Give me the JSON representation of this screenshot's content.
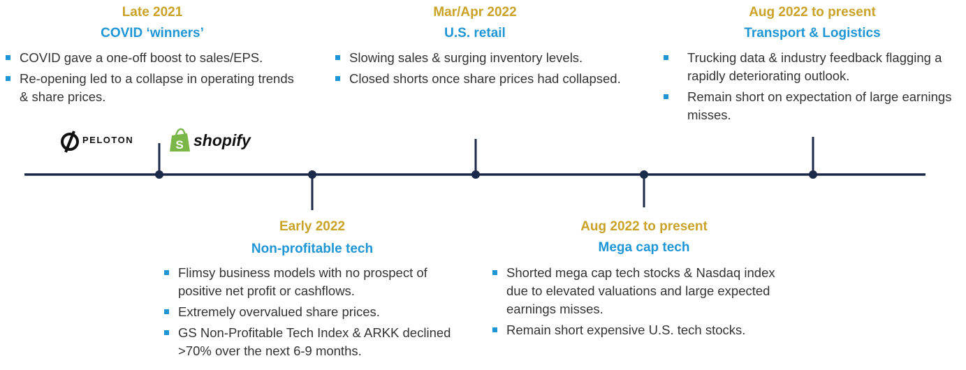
{
  "events": [
    {
      "period": "Late 2021",
      "title": "COVID ‘winners’",
      "bullets": [
        "COVID gave a one-off boost to sales/EPS.",
        "Re-opening led to a collapse in operating trends & share prices."
      ]
    },
    {
      "period": "Early 2022",
      "title": "Non-profitable tech",
      "bullets": [
        "Flimsy business models with no prospect of positive net profit or cashflows.",
        "Extremely overvalued share prices.",
        "GS Non-Profitable Tech Index & ARKK declined >70% over the next 6-9 months."
      ]
    },
    {
      "period": "Mar/Apr 2022",
      "title": "U.S. retail",
      "bullets": [
        "Slowing sales & surging inventory levels.",
        "Closed shorts once share prices had collapsed."
      ]
    },
    {
      "period": "Aug 2022 to present",
      "title": "Mega cap tech",
      "bullets": [
        "Shorted mega cap tech stocks & Nasdaq index due to elevated valuations and large expected earnings misses.",
        "Remain short expensive U.S. tech stocks."
      ]
    },
    {
      "period": "Aug 2022 to present",
      "title": "Transport & Logistics",
      "bullets": [
        "Trucking data & industry feedback flagging a rapidly deteriorating outlook.",
        "Remain short on expectation of large earnings misses."
      ]
    }
  ],
  "logos": [
    "PELOTON",
    "shopify"
  ]
}
